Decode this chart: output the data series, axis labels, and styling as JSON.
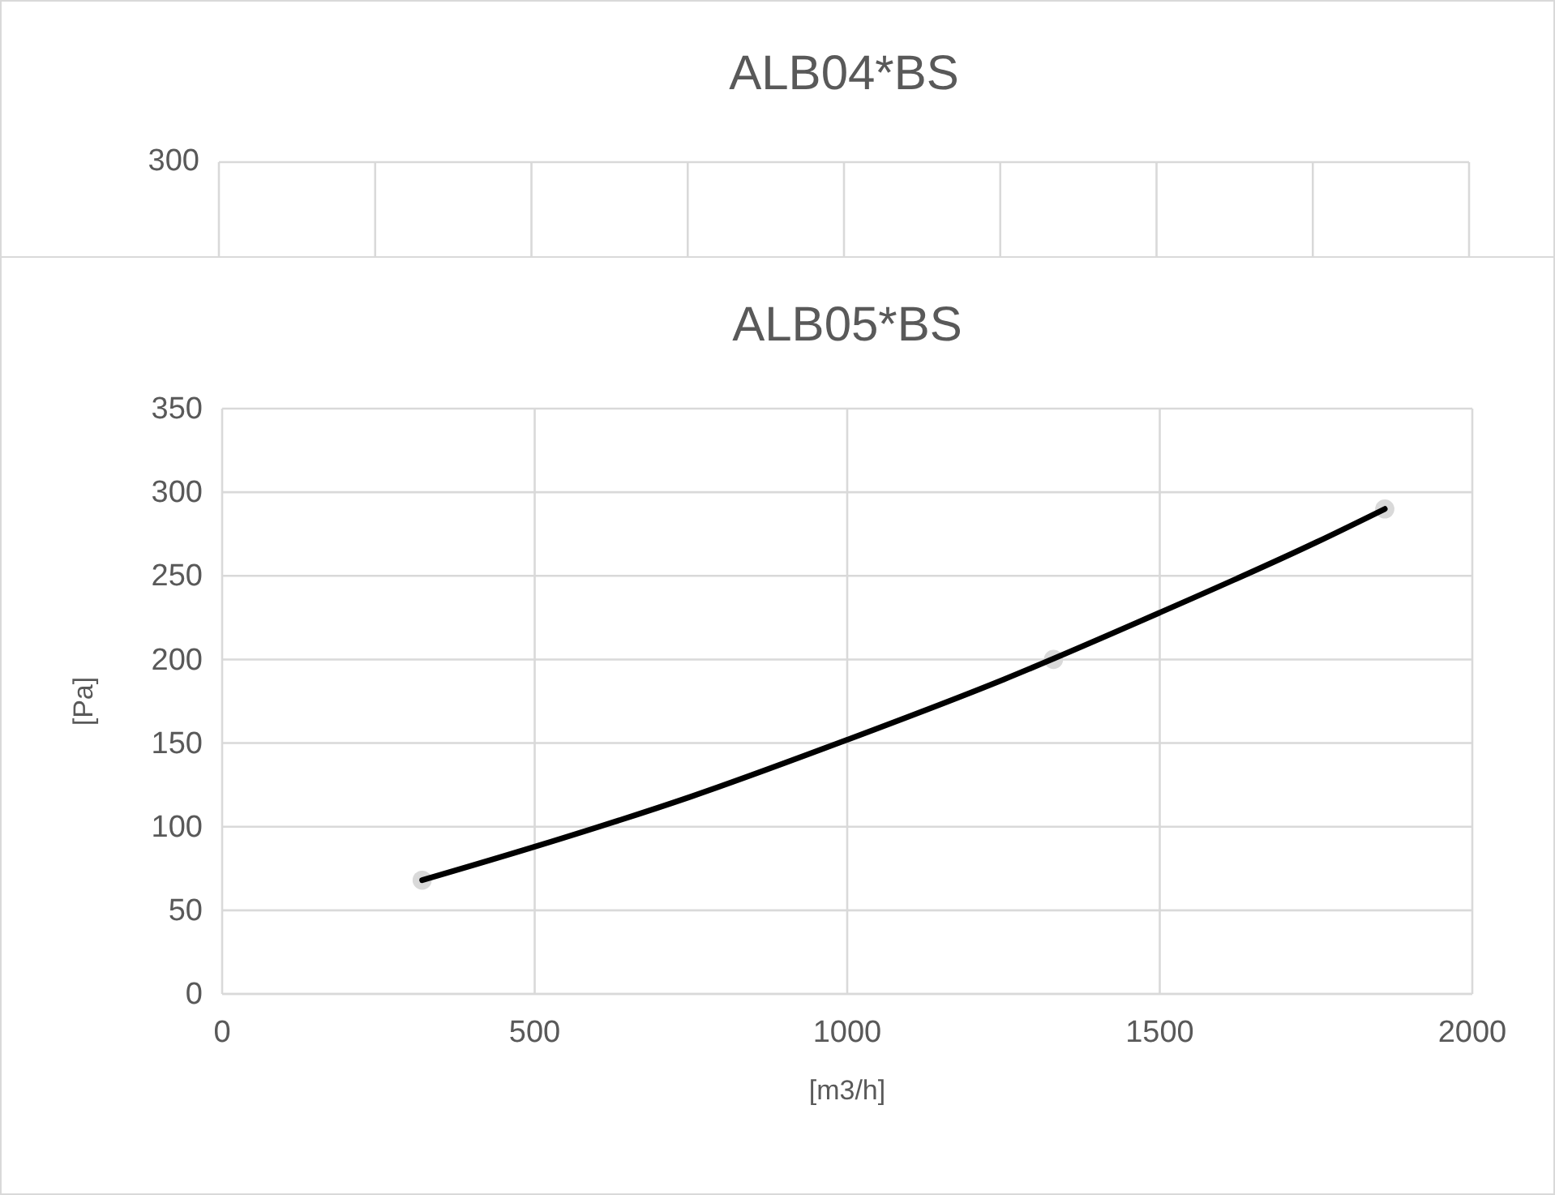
{
  "chart_data": [
    {
      "type": "other",
      "title": "ALB04*BS",
      "annotations": [
        "300"
      ]
    },
    {
      "type": "line",
      "title": "ALB05*BS",
      "xlabel": "[m3/h]",
      "ylabel": "[Pa]",
      "xlim": [
        0,
        2000
      ],
      "xticks": [
        0,
        500,
        1000,
        1500,
        2000
      ],
      "ylim": [
        0,
        350
      ],
      "yticks": [
        0,
        50,
        100,
        150,
        200,
        250,
        300,
        350
      ],
      "grid": true,
      "series": [
        {
          "type": "scatter",
          "color": "#d9d9d9",
          "x": [
            320,
            1330,
            1860
          ],
          "values": [
            68,
            200,
            290
          ],
          "marker": "circle"
        },
        {
          "type": "line",
          "color": "#000000",
          "x": [
            320,
            500,
            750,
            1000,
            1250,
            1500,
            1750,
            1860
          ],
          "values": [
            68,
            88,
            118,
            152,
            188,
            228,
            270,
            290
          ],
          "marker": "none",
          "line_style": "solid"
        }
      ]
    }
  ]
}
